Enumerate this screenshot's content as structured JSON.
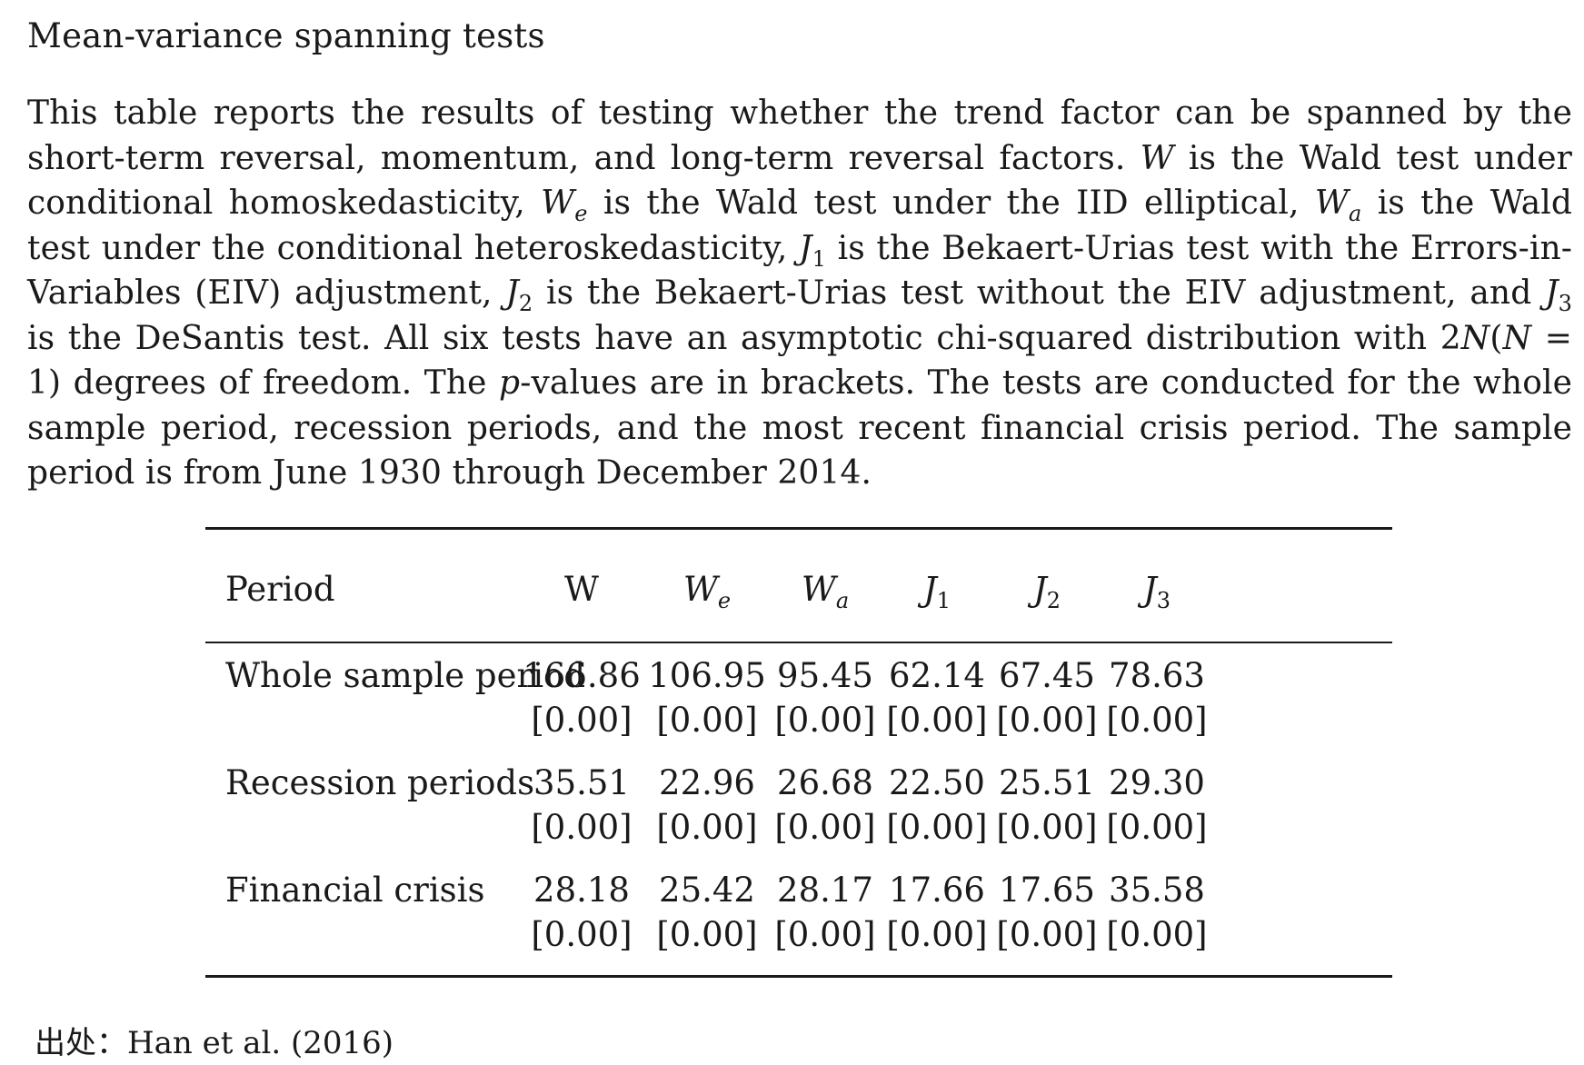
{
  "title": "Mean-variance spanning tests",
  "caption": "This table reports the results of testing whether the trend factor can be spanned by the short-term reversal, momentum, and long-term reversal factors. W is the Wald test under conditional homoskedasticity, We is the Wald test under the IID elliptical, Wa is the Wald test under the conditional heteroskedasticity, J1 is the Bekaert-Urias test with the Errors-in-Variables (EIV) adjustment, J2 is the Bekaert-Urias test without the EIV adjustment, and J3 is the DeSantis test. All six tests have an asymptotic chi-squared distribution with 2N(N = 1) degrees of freedom. The p-values are in brackets. The tests are conducted for the whole sample period, recession periods, and the most recent financial crisis period. The sample period is from June 1930 through December 2014.",
  "table": {
    "header": {
      "period": "Period",
      "columns": [
        {
          "base": "W",
          "sub": ""
        },
        {
          "base": "W",
          "sub": "e"
        },
        {
          "base": "W",
          "sub": "a"
        },
        {
          "base": "J",
          "sub": "1"
        },
        {
          "base": "J",
          "sub": "2"
        },
        {
          "base": "J",
          "sub": "3"
        }
      ]
    },
    "rows": [
      {
        "label": "Whole sample period",
        "values": [
          "166.86",
          "106.95",
          "95.45",
          "62.14",
          "67.45",
          "78.63"
        ],
        "pvalues": [
          "[0.00]",
          "[0.00]",
          "[0.00]",
          "[0.00]",
          "[0.00]",
          "[0.00]"
        ]
      },
      {
        "label": "Recession periods",
        "values": [
          "35.51",
          "22.96",
          "26.68",
          "22.50",
          "25.51",
          "29.30"
        ],
        "pvalues": [
          "[0.00]",
          "[0.00]",
          "[0.00]",
          "[0.00]",
          "[0.00]",
          "[0.00]"
        ]
      },
      {
        "label": "Financial crisis",
        "values": [
          "28.18",
          "25.42",
          "28.17",
          "17.66",
          "17.65",
          "35.58"
        ],
        "pvalues": [
          "[0.00]",
          "[0.00]",
          "[0.00]",
          "[0.00]",
          "[0.00]",
          "[0.00]"
        ]
      }
    ]
  },
  "source": "出处：Han et al. (2016)"
}
